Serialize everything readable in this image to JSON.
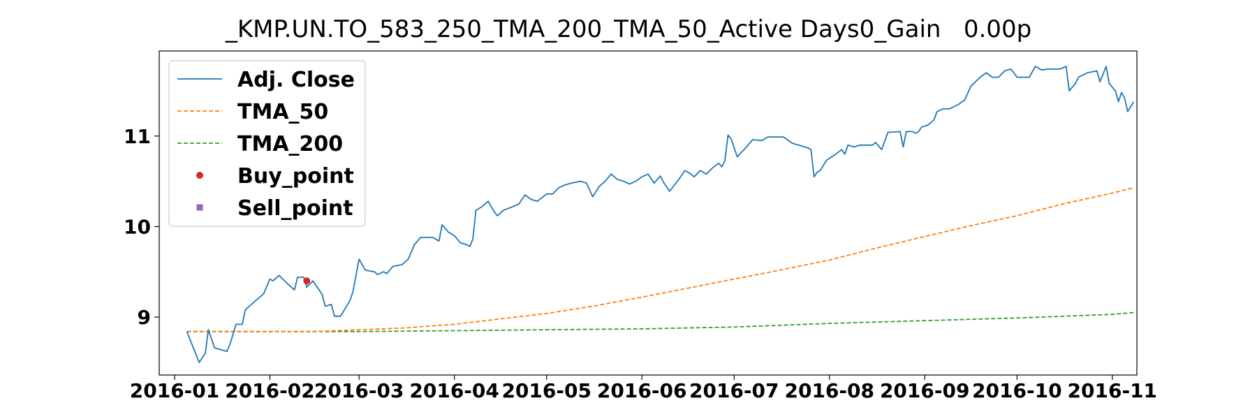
{
  "chart_data": {
    "type": "line",
    "title": "_KMP.UN.TO_583_250_TMA_200_TMA_50_Active Days0_Gain   0.00p",
    "xlabel": "",
    "ylabel": "",
    "x_axis": {
      "kind": "date",
      "range": [
        "2015-12-27",
        "2016-11-09"
      ],
      "tick_labels": [
        "2016-01",
        "2016-02",
        "2016-03",
        "2016-04",
        "2016-05",
        "2016-06",
        "2016-07",
        "2016-08",
        "2016-09",
        "2016-10",
        "2016-11"
      ],
      "tick_dates": [
        "2016-01-01",
        "2016-02-01",
        "2016-03-01",
        "2016-04-01",
        "2016-05-01",
        "2016-06-01",
        "2016-07-01",
        "2016-08-01",
        "2016-09-01",
        "2016-10-01",
        "2016-11-01"
      ]
    },
    "y_axis": {
      "range": [
        8.36,
        11.94
      ],
      "ticks": [
        9,
        10,
        11
      ],
      "tick_labels": [
        "9",
        "10",
        "11"
      ]
    },
    "grid": false,
    "legend": {
      "placement": "upper-left",
      "entries": [
        {
          "label": "Adj. Close",
          "color": "#1f77b4",
          "style": "solid"
        },
        {
          "label": "TMA_50",
          "color": "#ff7f0e",
          "style": "dashed"
        },
        {
          "label": "TMA_200",
          "color": "#2ca02c",
          "style": "dashed"
        },
        {
          "label": "Buy_point",
          "color": "#d62728",
          "style": "circle"
        },
        {
          "label": "Sell_point",
          "color": "#9467bd",
          "style": "square"
        }
      ]
    },
    "series": [
      {
        "name": "Adj. Close",
        "color": "#1f77b4",
        "style": "solid",
        "points": [
          [
            "2016-01-05",
            8.84
          ],
          [
            "2016-01-09",
            8.5
          ],
          [
            "2016-01-11",
            8.6
          ],
          [
            "2016-01-12",
            8.86
          ],
          [
            "2016-01-14",
            8.66
          ],
          [
            "2016-01-18",
            8.62
          ],
          [
            "2016-01-19",
            8.7
          ],
          [
            "2016-01-21",
            8.92
          ],
          [
            "2016-01-23",
            8.92
          ],
          [
            "2016-01-24",
            9.08
          ],
          [
            "2016-01-27",
            9.17
          ],
          [
            "2016-01-30",
            9.26
          ],
          [
            "2016-02-01",
            9.42
          ],
          [
            "2016-02-02",
            9.4
          ],
          [
            "2016-02-04",
            9.46
          ],
          [
            "2016-02-07",
            9.36
          ],
          [
            "2016-02-09",
            9.3
          ],
          [
            "2016-02-10",
            9.44
          ],
          [
            "2016-02-12",
            9.44
          ],
          [
            "2016-02-13",
            9.33
          ],
          [
            "2016-02-15",
            9.4
          ],
          [
            "2016-02-18",
            9.25
          ],
          [
            "2016-02-19",
            9.12
          ],
          [
            "2016-02-21",
            9.14
          ],
          [
            "2016-02-22",
            9.01
          ],
          [
            "2016-02-24",
            9.01
          ],
          [
            "2016-02-27",
            9.18
          ],
          [
            "2016-02-28",
            9.28
          ],
          [
            "2016-03-01",
            9.64
          ],
          [
            "2016-03-03",
            9.52
          ],
          [
            "2016-03-06",
            9.5
          ],
          [
            "2016-03-07",
            9.47
          ],
          [
            "2016-03-09",
            9.5
          ],
          [
            "2016-03-10",
            9.48
          ],
          [
            "2016-03-12",
            9.56
          ],
          [
            "2016-03-15",
            9.58
          ],
          [
            "2016-03-17",
            9.64
          ],
          [
            "2016-03-19",
            9.8
          ],
          [
            "2016-03-21",
            9.88
          ],
          [
            "2016-03-25",
            9.88
          ],
          [
            "2016-03-27",
            9.84
          ],
          [
            "2016-03-28",
            10.02
          ],
          [
            "2016-03-30",
            9.94
          ],
          [
            "2016-04-01",
            9.9
          ],
          [
            "2016-04-03",
            9.82
          ],
          [
            "2016-04-05",
            9.8
          ],
          [
            "2016-04-06",
            9.78
          ],
          [
            "2016-04-07",
            9.86
          ],
          [
            "2016-04-08",
            10.18
          ],
          [
            "2016-04-10",
            10.22
          ],
          [
            "2016-04-12",
            10.28
          ],
          [
            "2016-04-14",
            10.16
          ],
          [
            "2016-04-15",
            10.12
          ],
          [
            "2016-04-17",
            10.18
          ],
          [
            "2016-04-20",
            10.22
          ],
          [
            "2016-04-22",
            10.25
          ],
          [
            "2016-04-24",
            10.35
          ],
          [
            "2016-04-26",
            10.3
          ],
          [
            "2016-04-28",
            10.28
          ],
          [
            "2016-05-01",
            10.36
          ],
          [
            "2016-05-03",
            10.36
          ],
          [
            "2016-05-05",
            10.43
          ],
          [
            "2016-05-07",
            10.46
          ],
          [
            "2016-05-09",
            10.48
          ],
          [
            "2016-05-12",
            10.5
          ],
          [
            "2016-05-14",
            10.48
          ],
          [
            "2016-05-16",
            10.33
          ],
          [
            "2016-05-18",
            10.44
          ],
          [
            "2016-05-20",
            10.5
          ],
          [
            "2016-05-22",
            10.58
          ],
          [
            "2016-05-24",
            10.52
          ],
          [
            "2016-05-26",
            10.5
          ],
          [
            "2016-05-28",
            10.47
          ],
          [
            "2016-05-30",
            10.5
          ],
          [
            "2016-06-01",
            10.55
          ],
          [
            "2016-06-03",
            10.58
          ],
          [
            "2016-06-05",
            10.48
          ],
          [
            "2016-06-07",
            10.56
          ],
          [
            "2016-06-08",
            10.49
          ],
          [
            "2016-06-10",
            10.39
          ],
          [
            "2016-06-13",
            10.52
          ],
          [
            "2016-06-15",
            10.62
          ],
          [
            "2016-06-17",
            10.58
          ],
          [
            "2016-06-18",
            10.55
          ],
          [
            "2016-06-20",
            10.62
          ],
          [
            "2016-06-22",
            10.58
          ],
          [
            "2016-06-24",
            10.65
          ],
          [
            "2016-06-26",
            10.7
          ],
          [
            "2016-06-27",
            10.66
          ],
          [
            "2016-06-28",
            10.73
          ],
          [
            "2016-06-29",
            11.01
          ],
          [
            "2016-06-30",
            10.97
          ],
          [
            "2016-07-02",
            10.77
          ],
          [
            "2016-07-05",
            10.88
          ],
          [
            "2016-07-07",
            10.96
          ],
          [
            "2016-07-10",
            10.95
          ],
          [
            "2016-07-12",
            10.99
          ],
          [
            "2016-07-17",
            10.99
          ],
          [
            "2016-07-20",
            10.92
          ],
          [
            "2016-07-25",
            10.87
          ],
          [
            "2016-07-26",
            10.85
          ],
          [
            "2016-07-27",
            10.55
          ],
          [
            "2016-07-28",
            10.6
          ],
          [
            "2016-07-29",
            10.62
          ],
          [
            "2016-07-31",
            10.73
          ],
          [
            "2016-08-03",
            10.8
          ],
          [
            "2016-08-05",
            10.85
          ],
          [
            "2016-08-06",
            10.8
          ],
          [
            "2016-08-07",
            10.9
          ],
          [
            "2016-08-09",
            10.88
          ],
          [
            "2016-08-11",
            10.9
          ],
          [
            "2016-08-14",
            10.9
          ],
          [
            "2016-08-15",
            10.9
          ],
          [
            "2016-08-16",
            10.93
          ],
          [
            "2016-08-18",
            10.85
          ],
          [
            "2016-08-20",
            11.04
          ],
          [
            "2016-08-24",
            11.05
          ],
          [
            "2016-08-25",
            10.88
          ],
          [
            "2016-08-26",
            11.05
          ],
          [
            "2016-08-28",
            11.05
          ],
          [
            "2016-08-29",
            11.03
          ],
          [
            "2016-08-30",
            11.05
          ],
          [
            "2016-08-31",
            11.1
          ],
          [
            "2016-09-02",
            11.12
          ],
          [
            "2016-09-04",
            11.18
          ],
          [
            "2016-09-05",
            11.27
          ],
          [
            "2016-09-07",
            11.3
          ],
          [
            "2016-09-09",
            11.3
          ],
          [
            "2016-09-12",
            11.35
          ],
          [
            "2016-09-14",
            11.4
          ],
          [
            "2016-09-16",
            11.55
          ],
          [
            "2016-09-19",
            11.65
          ],
          [
            "2016-09-21",
            11.7
          ],
          [
            "2016-09-23",
            11.65
          ],
          [
            "2016-09-25",
            11.65
          ],
          [
            "2016-09-27",
            11.72
          ],
          [
            "2016-09-29",
            11.74
          ],
          [
            "2016-09-30",
            11.7
          ],
          [
            "2016-10-01",
            11.65
          ],
          [
            "2016-10-05",
            11.65
          ],
          [
            "2016-10-07",
            11.77
          ],
          [
            "2016-10-09",
            11.73
          ],
          [
            "2016-10-11",
            11.74
          ],
          [
            "2016-10-15",
            11.74
          ],
          [
            "2016-10-17",
            11.77
          ],
          [
            "2016-10-18",
            11.5
          ],
          [
            "2016-10-20",
            11.58
          ],
          [
            "2016-10-21",
            11.65
          ],
          [
            "2016-10-24",
            11.7
          ],
          [
            "2016-10-27",
            11.72
          ],
          [
            "2016-10-28",
            11.6
          ],
          [
            "2016-10-30",
            11.77
          ],
          [
            "2016-10-31",
            11.58
          ],
          [
            "2016-11-02",
            11.5
          ],
          [
            "2016-11-03",
            11.38
          ],
          [
            "2016-11-04",
            11.48
          ],
          [
            "2016-11-05",
            11.42
          ],
          [
            "2016-11-06",
            11.27
          ],
          [
            "2016-11-08",
            11.38
          ]
        ]
      },
      {
        "name": "TMA_50",
        "color": "#ff7f0e",
        "style": "dashed",
        "points": [
          [
            "2016-01-05",
            8.84
          ],
          [
            "2016-02-15",
            8.84
          ],
          [
            "2016-03-01",
            8.86
          ],
          [
            "2016-03-16",
            8.88
          ],
          [
            "2016-04-01",
            8.92
          ],
          [
            "2016-04-16",
            8.98
          ],
          [
            "2016-05-01",
            9.04
          ],
          [
            "2016-05-16",
            9.12
          ],
          [
            "2016-06-01",
            9.22
          ],
          [
            "2016-06-16",
            9.32
          ],
          [
            "2016-07-01",
            9.42
          ],
          [
            "2016-07-16",
            9.52
          ],
          [
            "2016-08-01",
            9.63
          ],
          [
            "2016-08-16",
            9.76
          ],
          [
            "2016-09-01",
            9.89
          ],
          [
            "2016-09-16",
            10.01
          ],
          [
            "2016-10-01",
            10.12
          ],
          [
            "2016-10-16",
            10.25
          ],
          [
            "2016-11-01",
            10.37
          ],
          [
            "2016-11-08",
            10.43
          ]
        ]
      },
      {
        "name": "TMA_200",
        "color": "#2ca02c",
        "style": "dashed",
        "points": [
          [
            "2016-01-05",
            8.84
          ],
          [
            "2016-03-01",
            8.84
          ],
          [
            "2016-04-01",
            8.85
          ],
          [
            "2016-05-01",
            8.86
          ],
          [
            "2016-06-01",
            8.87
          ],
          [
            "2016-07-01",
            8.89
          ],
          [
            "2016-08-01",
            8.93
          ],
          [
            "2016-09-01",
            8.96
          ],
          [
            "2016-10-01",
            8.99
          ],
          [
            "2016-11-01",
            9.03
          ],
          [
            "2016-11-08",
            9.05
          ]
        ]
      }
    ],
    "markers": [
      {
        "name": "Buy_point",
        "color": "#d62728",
        "shape": "circle",
        "points": [
          [
            "2016-02-13",
            9.4
          ]
        ]
      },
      {
        "name": "Sell_point",
        "color": "#9467bd",
        "shape": "square",
        "points": []
      }
    ]
  }
}
